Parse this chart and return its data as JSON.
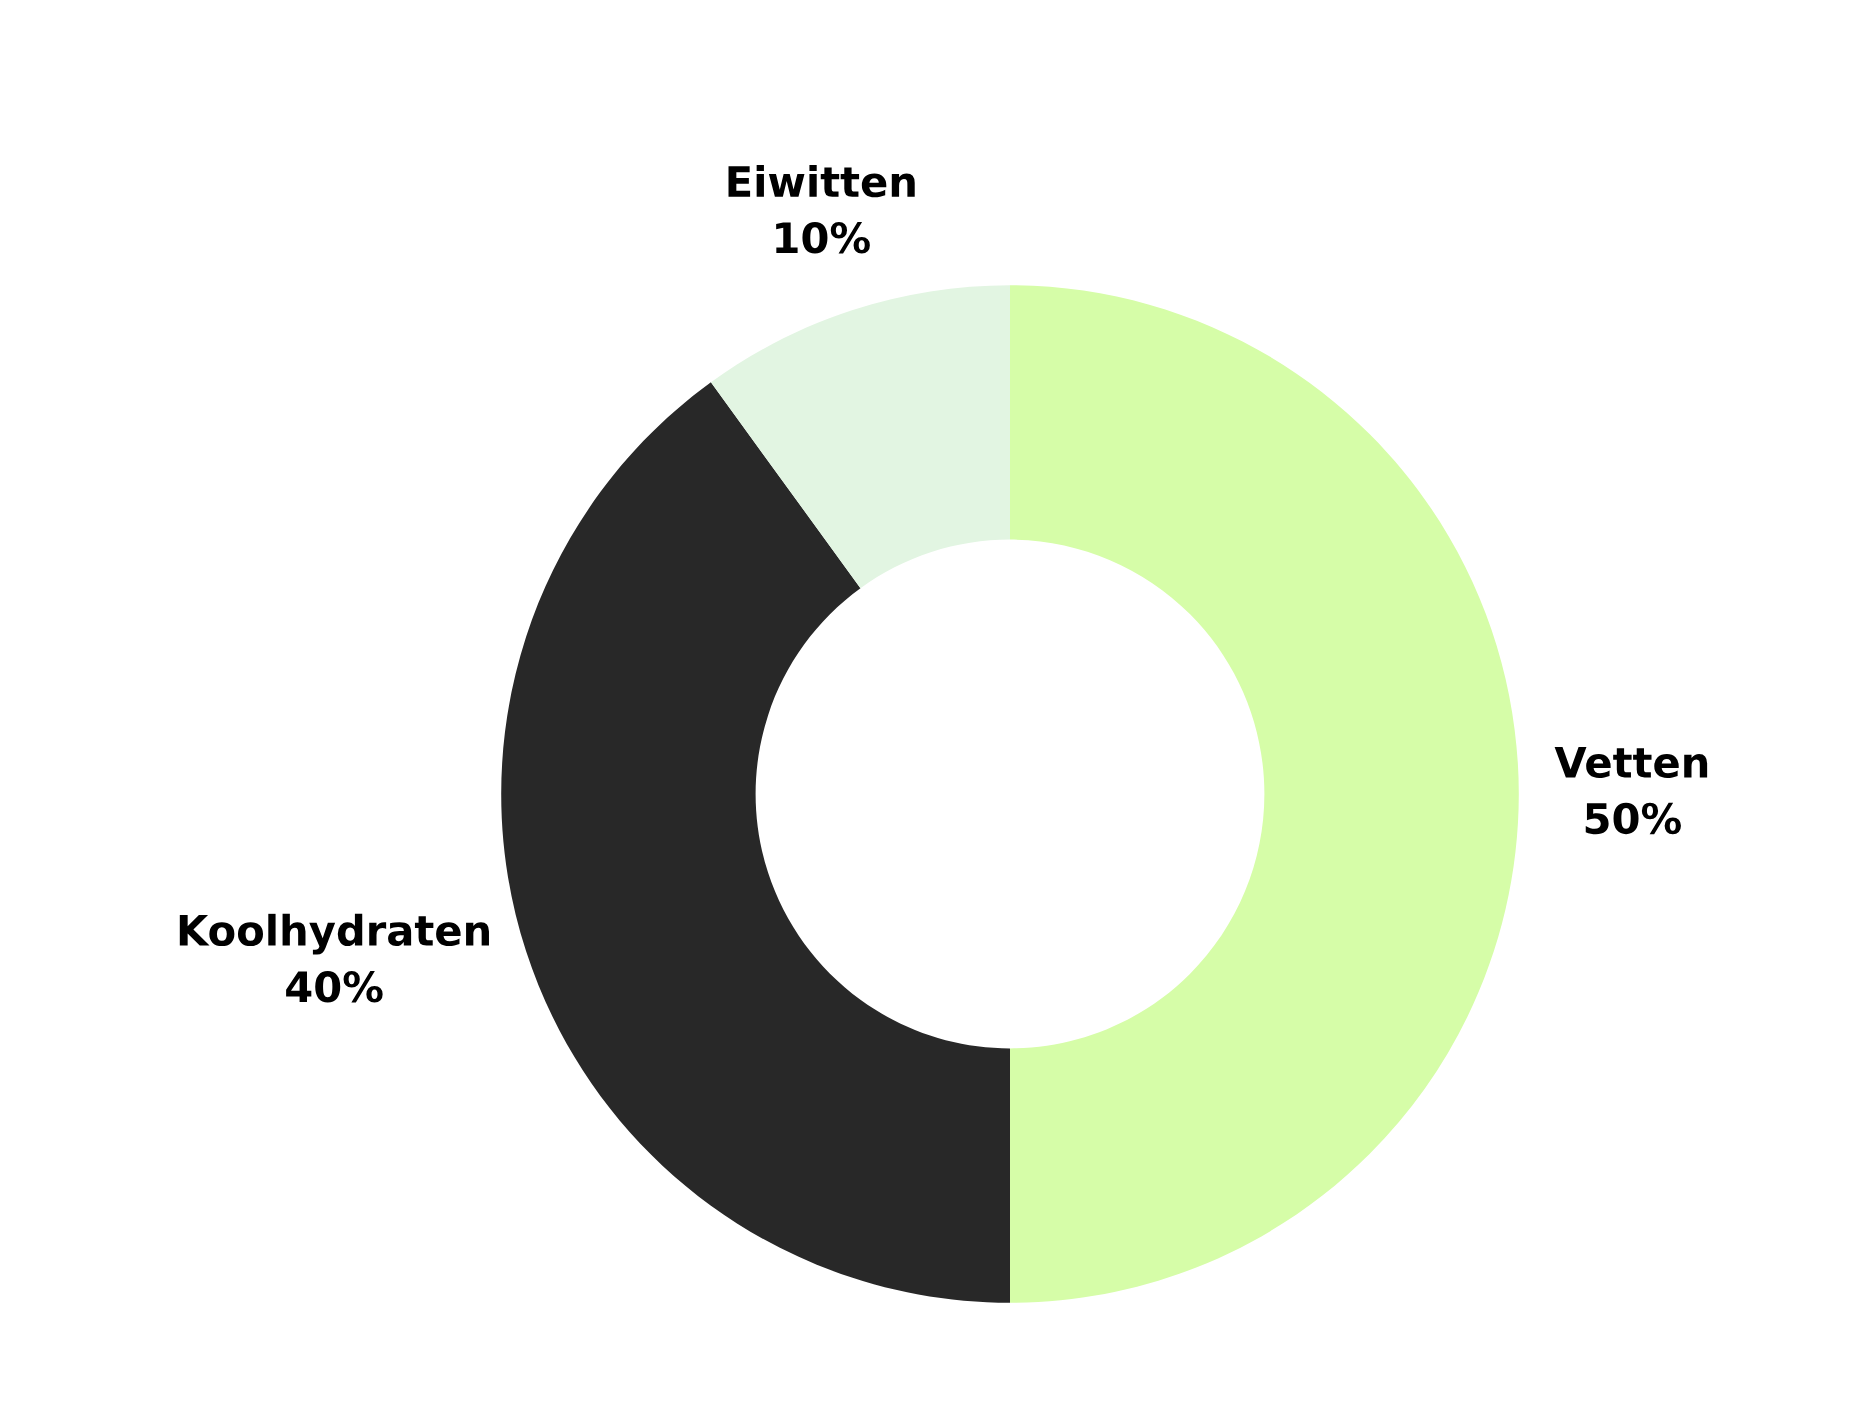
{
  "chart_data": {
    "type": "donut",
    "categories": [
      "Vetten",
      "Koolhydraten",
      "Eiwitten"
    ],
    "values": [
      50,
      40,
      10
    ],
    "colors": [
      "#d6fda8",
      "#282828",
      "#e2f5e2"
    ],
    "value_labels": [
      "50%",
      "40%",
      "10%"
    ]
  }
}
